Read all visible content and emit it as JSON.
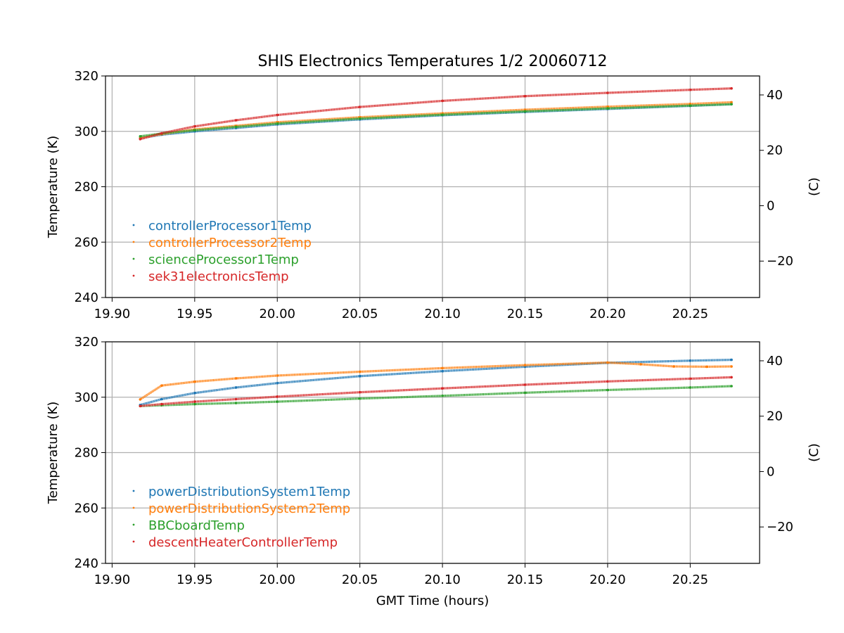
{
  "figure": {
    "title": "SHIS Electronics Temperatures 1/2 20060712",
    "xlabel": "GMT Time (hours)"
  },
  "chart_data": [
    {
      "type": "scatter",
      "title": "SHIS Electronics Temperatures 1/2 20060712",
      "xlabel": "",
      "ylabel": "Temperature (K)",
      "y2label": "(C)",
      "xlim": [
        19.896,
        20.292
      ],
      "ylim": [
        240,
        320
      ],
      "y2lim": [
        -33.15,
        46.85
      ],
      "xticks": [
        "19.90",
        "19.95",
        "20.00",
        "20.05",
        "20.10",
        "20.15",
        "20.20",
        "20.25"
      ],
      "yticks": [
        "240",
        "260",
        "280",
        "300",
        "320"
      ],
      "y2ticks": [
        "−20",
        "0",
        "20",
        "40"
      ],
      "grid": true,
      "legend_position": "lower-left",
      "series": [
        {
          "name": "controllerProcessor1Temp",
          "color": "#1f77b4",
          "x": [
            19.917,
            19.93,
            19.95,
            19.975,
            20.0,
            20.05,
            20.1,
            20.15,
            20.2,
            20.25,
            20.275
          ],
          "y": [
            297.5,
            298.8,
            300.0,
            301.2,
            302.5,
            304.3,
            305.8,
            307.0,
            308.1,
            309.2,
            309.8
          ]
        },
        {
          "name": "controllerProcessor2Temp",
          "color": "#ff7f0e",
          "x": [
            19.917,
            19.93,
            19.95,
            19.975,
            20.0,
            20.05,
            20.1,
            20.15,
            20.2,
            20.25,
            20.275
          ],
          "y": [
            297.6,
            299.0,
            300.7,
            302.0,
            303.3,
            305.1,
            306.5,
            307.8,
            308.9,
            309.9,
            310.5
          ]
        },
        {
          "name": "scienceProcessor1Temp",
          "color": "#2ca02c",
          "x": [
            19.917,
            19.93,
            19.95,
            19.975,
            20.0,
            20.05,
            20.1,
            20.15,
            20.2,
            20.25,
            20.275
          ],
          "y": [
            298.2,
            299.2,
            300.4,
            301.6,
            302.8,
            304.6,
            306.0,
            307.2,
            308.3,
            309.3,
            309.8
          ]
        },
        {
          "name": "sek31electronicsTemp",
          "color": "#d62728",
          "x": [
            19.917,
            19.93,
            19.95,
            19.975,
            20.0,
            20.05,
            20.1,
            20.15,
            20.2,
            20.25,
            20.275
          ],
          "y": [
            297.2,
            299.3,
            301.8,
            304.0,
            305.9,
            308.8,
            311.0,
            312.7,
            313.9,
            315.0,
            315.5
          ]
        }
      ]
    },
    {
      "type": "scatter",
      "title": "",
      "xlabel": "GMT Time (hours)",
      "ylabel": "Temperature (K)",
      "y2label": "(C)",
      "xlim": [
        19.896,
        20.292
      ],
      "ylim": [
        240,
        320
      ],
      "y2lim": [
        -33.15,
        46.85
      ],
      "xticks": [
        "19.90",
        "19.95",
        "20.00",
        "20.05",
        "20.10",
        "20.15",
        "20.20",
        "20.25"
      ],
      "yticks": [
        "240",
        "260",
        "280",
        "300",
        "320"
      ],
      "y2ticks": [
        "−20",
        "0",
        "20",
        "40"
      ],
      "grid": true,
      "legend_position": "lower-left",
      "series": [
        {
          "name": "powerDistributionSystem1Temp",
          "color": "#1f77b4",
          "x": [
            19.917,
            19.93,
            19.95,
            19.975,
            20.0,
            20.05,
            20.1,
            20.15,
            20.2,
            20.25,
            20.275
          ],
          "y": [
            297.2,
            299.3,
            301.5,
            303.5,
            305.1,
            307.6,
            309.4,
            311.0,
            312.4,
            313.2,
            313.5
          ]
        },
        {
          "name": "powerDistributionSystem2Temp",
          "color": "#ff7f0e",
          "x": [
            19.917,
            19.93,
            19.95,
            19.975,
            20.0,
            20.05,
            20.1,
            20.15,
            20.2,
            20.22,
            20.24,
            20.26,
            20.275
          ],
          "y": [
            299.2,
            304.2,
            305.6,
            306.8,
            307.8,
            309.2,
            310.5,
            311.6,
            312.5,
            311.9,
            311.1,
            311.0,
            311.1
          ]
        },
        {
          "name": "BBCboardTemp",
          "color": "#2ca02c",
          "x": [
            19.917,
            19.93,
            19.95,
            19.975,
            20.0,
            20.05,
            20.1,
            20.15,
            20.2,
            20.25,
            20.275
          ],
          "y": [
            296.8,
            297.1,
            297.5,
            297.9,
            298.4,
            299.5,
            300.5,
            301.6,
            302.6,
            303.5,
            304.0
          ]
        },
        {
          "name": "descentHeaterControllerTemp",
          "color": "#d62728",
          "x": [
            19.917,
            19.93,
            19.95,
            19.975,
            20.0,
            20.05,
            20.1,
            20.15,
            20.2,
            20.25,
            20.275
          ],
          "y": [
            296.8,
            297.5,
            298.4,
            299.3,
            300.2,
            301.8,
            303.2,
            304.5,
            305.7,
            306.7,
            307.2
          ]
        }
      ]
    }
  ]
}
